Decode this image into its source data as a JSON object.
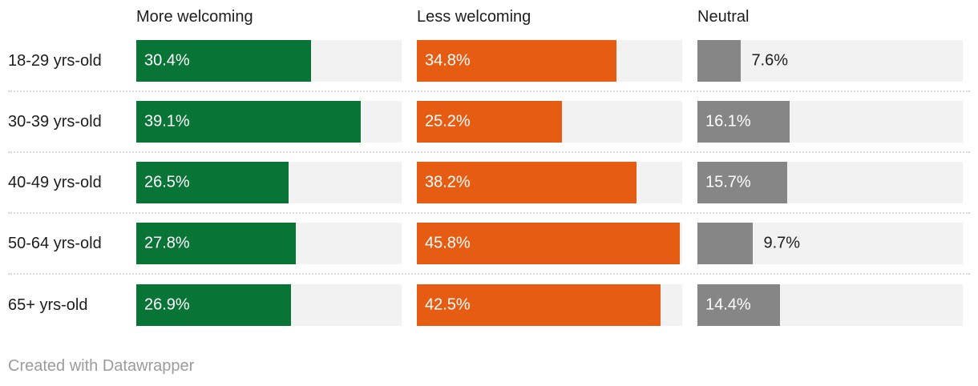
{
  "chart_data": {
    "type": "bar",
    "variant": "split-bars",
    "categories": [
      "18-29 yrs-old",
      "30-39 yrs-old",
      "40-49 yrs-old",
      "50-64 yrs-old",
      "65+ yrs-old"
    ],
    "series": [
      {
        "name": "More welcoming",
        "color": "#087436",
        "values": [
          30.4,
          39.1,
          26.5,
          27.8,
          26.9
        ]
      },
      {
        "name": "Less welcoming",
        "color": "#e55c12",
        "values": [
          34.8,
          25.2,
          38.2,
          45.8,
          42.5
        ]
      },
      {
        "name": "Neutral",
        "color": "#868686",
        "values": [
          7.6,
          16.1,
          15.7,
          9.7,
          14.4
        ]
      }
    ],
    "value_suffix": "%",
    "xmax": 46.2,
    "track_color": "#f2f2f2",
    "separator_color": "#d6d6d6",
    "label_inside_color": "#ffffff",
    "label_outside_color": "#1d1d1d",
    "label_outside_threshold": 12,
    "grid": false,
    "legend_position": "column-headers",
    "title": "",
    "xlabel": "",
    "ylabel": ""
  },
  "footer": {
    "attribution": "Created with Datawrapper"
  }
}
